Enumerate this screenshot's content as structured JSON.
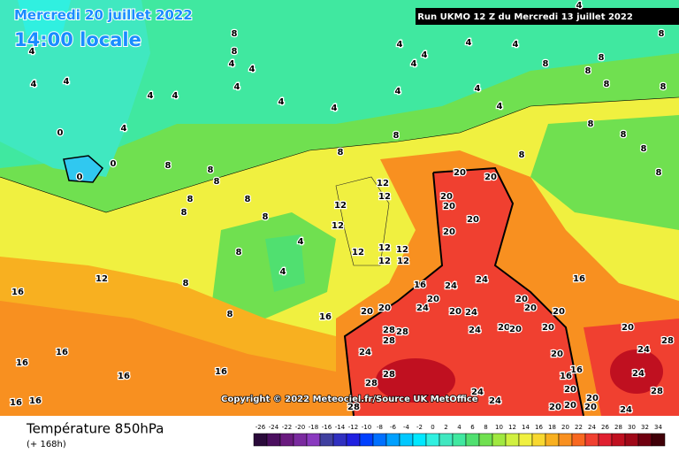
{
  "header": {
    "run_info": "Run UKMO 12 Z du Mercredi 13 juillet 2022",
    "date": "Mercredi 20 juillet 2022",
    "time": "14:00 locale"
  },
  "map": {
    "copyright": "Copyright © 2022 Meteociel.fr/Source UK MetOffice",
    "labels": [
      8,
      8,
      4,
      4,
      4,
      4,
      4,
      4,
      4,
      4,
      8,
      8,
      8,
      8,
      8,
      8,
      4,
      4,
      4,
      4,
      4,
      0,
      0,
      0,
      4,
      4,
      4,
      4,
      4,
      4,
      4,
      8,
      8,
      8,
      8,
      8,
      8,
      8,
      8,
      8,
      8,
      8,
      8,
      8,
      8,
      12,
      12,
      12,
      12,
      12,
      12,
      12,
      12,
      12,
      12,
      4,
      4,
      8,
      8,
      8,
      16,
      16,
      16,
      16,
      16,
      16,
      16,
      16,
      16,
      16,
      16,
      16,
      20,
      20,
      20,
      20,
      20,
      20,
      20,
      20,
      20,
      20,
      20,
      20,
      20,
      20,
      20,
      20,
      20,
      20,
      20,
      20,
      20,
      20,
      20,
      24,
      24,
      24,
      24,
      24,
      24,
      24,
      24,
      24,
      24,
      24,
      28,
      28,
      28,
      28,
      28,
      28,
      28,
      28
    ]
  },
  "footer": {
    "title": "Température 850hPa",
    "lead": "(+ 168h)"
  },
  "scale": {
    "values": [
      -26,
      -24,
      -22,
      -20,
      -18,
      -16,
      -14,
      -12,
      -10,
      -8,
      -6,
      -4,
      -2,
      0,
      2,
      4,
      6,
      8,
      10,
      12,
      14,
      16,
      18,
      20,
      22,
      24,
      26,
      28,
      30,
      32,
      34
    ],
    "colors": [
      "#2a0a3a",
      "#4b0f5f",
      "#6a1a7f",
      "#7a2a9f",
      "#8a3abf",
      "#4040a0",
      "#3030c0",
      "#2020e0",
      "#0040ff",
      "#0070ff",
      "#00a0ff",
      "#00c8ff",
      "#00e8ff",
      "#30f0e0",
      "#40e8c0",
      "#40e8a0",
      "#50e070",
      "#70e050",
      "#a0e840",
      "#d0f040",
      "#f0f040",
      "#f8d830",
      "#f8b020",
      "#f89020",
      "#f86820",
      "#f04030",
      "#e02030",
      "#c01020",
      "#a00818",
      "#700010",
      "#400008"
    ]
  }
}
